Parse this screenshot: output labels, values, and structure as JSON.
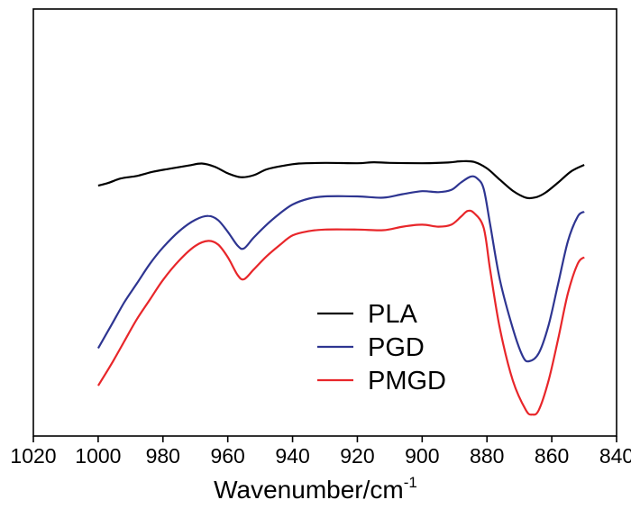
{
  "chart_data": {
    "type": "line",
    "title": "",
    "xlabel": "Wavenumber/cm",
    "xlabel_superscript": "-1",
    "ylabel": "",
    "xlim": [
      1020,
      840
    ],
    "x_reversed": true,
    "y_ticks_shown": false,
    "x_ticks": [
      1020,
      1000,
      980,
      960,
      940,
      920,
      900,
      880,
      860,
      840
    ],
    "x_tick_labels": [
      "1020",
      "1000",
      "980",
      "960",
      "940",
      "920",
      "900",
      "880",
      "860",
      "840"
    ],
    "grid": false,
    "legend_position": "bottom-right",
    "series": [
      {
        "name": "PLA",
        "color": "#000000",
        "points": [
          [
            1000,
            0.72
          ],
          [
            997,
            0.728
          ],
          [
            993,
            0.742
          ],
          [
            988,
            0.75
          ],
          [
            983,
            0.763
          ],
          [
            978,
            0.772
          ],
          [
            972,
            0.782
          ],
          [
            968,
            0.788
          ],
          [
            964,
            0.778
          ],
          [
            960,
            0.758
          ],
          [
            956,
            0.746
          ],
          [
            952,
            0.752
          ],
          [
            948,
            0.77
          ],
          [
            943,
            0.781
          ],
          [
            938,
            0.788
          ],
          [
            930,
            0.79
          ],
          [
            920,
            0.789
          ],
          [
            915,
            0.792
          ],
          [
            910,
            0.79
          ],
          [
            900,
            0.789
          ],
          [
            892,
            0.791
          ],
          [
            888,
            0.795
          ],
          [
            884,
            0.793
          ],
          [
            880,
            0.773
          ],
          [
            876,
            0.738
          ],
          [
            872,
            0.704
          ],
          [
            868,
            0.683
          ],
          [
            865,
            0.684
          ],
          [
            862,
            0.698
          ],
          [
            858,
            0.73
          ],
          [
            854,
            0.764
          ],
          [
            850,
            0.784
          ]
        ]
      },
      {
        "name": "PGD",
        "color": "#2e3591",
        "points": [
          [
            1000,
            0.22
          ],
          [
            996,
            0.29
          ],
          [
            992,
            0.36
          ],
          [
            988,
            0.42
          ],
          [
            984,
            0.48
          ],
          [
            980,
            0.53
          ],
          [
            975,
            0.58
          ],
          [
            970,
            0.615
          ],
          [
            966,
            0.627
          ],
          [
            963,
            0.614
          ],
          [
            960,
            0.578
          ],
          [
            957,
            0.536
          ],
          [
            955,
            0.527
          ],
          [
            952,
            0.56
          ],
          [
            948,
            0.6
          ],
          [
            944,
            0.634
          ],
          [
            940,
            0.662
          ],
          [
            935,
            0.68
          ],
          [
            930,
            0.687
          ],
          [
            920,
            0.687
          ],
          [
            912,
            0.683
          ],
          [
            906,
            0.694
          ],
          [
            900,
            0.703
          ],
          [
            895,
            0.7
          ],
          [
            891,
            0.707
          ],
          [
            888,
            0.73
          ],
          [
            885,
            0.748
          ],
          [
            883,
            0.742
          ],
          [
            881,
            0.71
          ],
          [
            879,
            0.6
          ],
          [
            876,
            0.43
          ],
          [
            872,
            0.28
          ],
          [
            869,
            0.196
          ],
          [
            867,
            0.18
          ],
          [
            864,
            0.205
          ],
          [
            861,
            0.29
          ],
          [
            858,
            0.42
          ],
          [
            855,
            0.55
          ],
          [
            852,
            0.625
          ],
          [
            850,
            0.64
          ]
        ]
      },
      {
        "name": "PMGD",
        "color": "#e8262a",
        "points": [
          [
            1000,
            0.105
          ],
          [
            996,
            0.17
          ],
          [
            992,
            0.24
          ],
          [
            988,
            0.31
          ],
          [
            984,
            0.37
          ],
          [
            980,
            0.43
          ],
          [
            975,
            0.49
          ],
          [
            970,
            0.535
          ],
          [
            966,
            0.55
          ],
          [
            963,
            0.539
          ],
          [
            960,
            0.5
          ],
          [
            957,
            0.446
          ],
          [
            955,
            0.432
          ],
          [
            952,
            0.462
          ],
          [
            948,
            0.503
          ],
          [
            944,
            0.537
          ],
          [
            940,
            0.567
          ],
          [
            935,
            0.58
          ],
          [
            930,
            0.585
          ],
          [
            920,
            0.585
          ],
          [
            912,
            0.583
          ],
          [
            906,
            0.594
          ],
          [
            900,
            0.6
          ],
          [
            895,
            0.594
          ],
          [
            891,
            0.6
          ],
          [
            888,
            0.625
          ],
          [
            886,
            0.642
          ],
          [
            884,
            0.636
          ],
          [
            881,
            0.59
          ],
          [
            879,
            0.46
          ],
          [
            876,
            0.28
          ],
          [
            872,
            0.12
          ],
          [
            868,
            0.03
          ],
          [
            866,
            0.016
          ],
          [
            864,
            0.03
          ],
          [
            861,
            0.12
          ],
          [
            858,
            0.25
          ],
          [
            855,
            0.39
          ],
          [
            852,
            0.48
          ],
          [
            850,
            0.5
          ]
        ]
      }
    ]
  }
}
